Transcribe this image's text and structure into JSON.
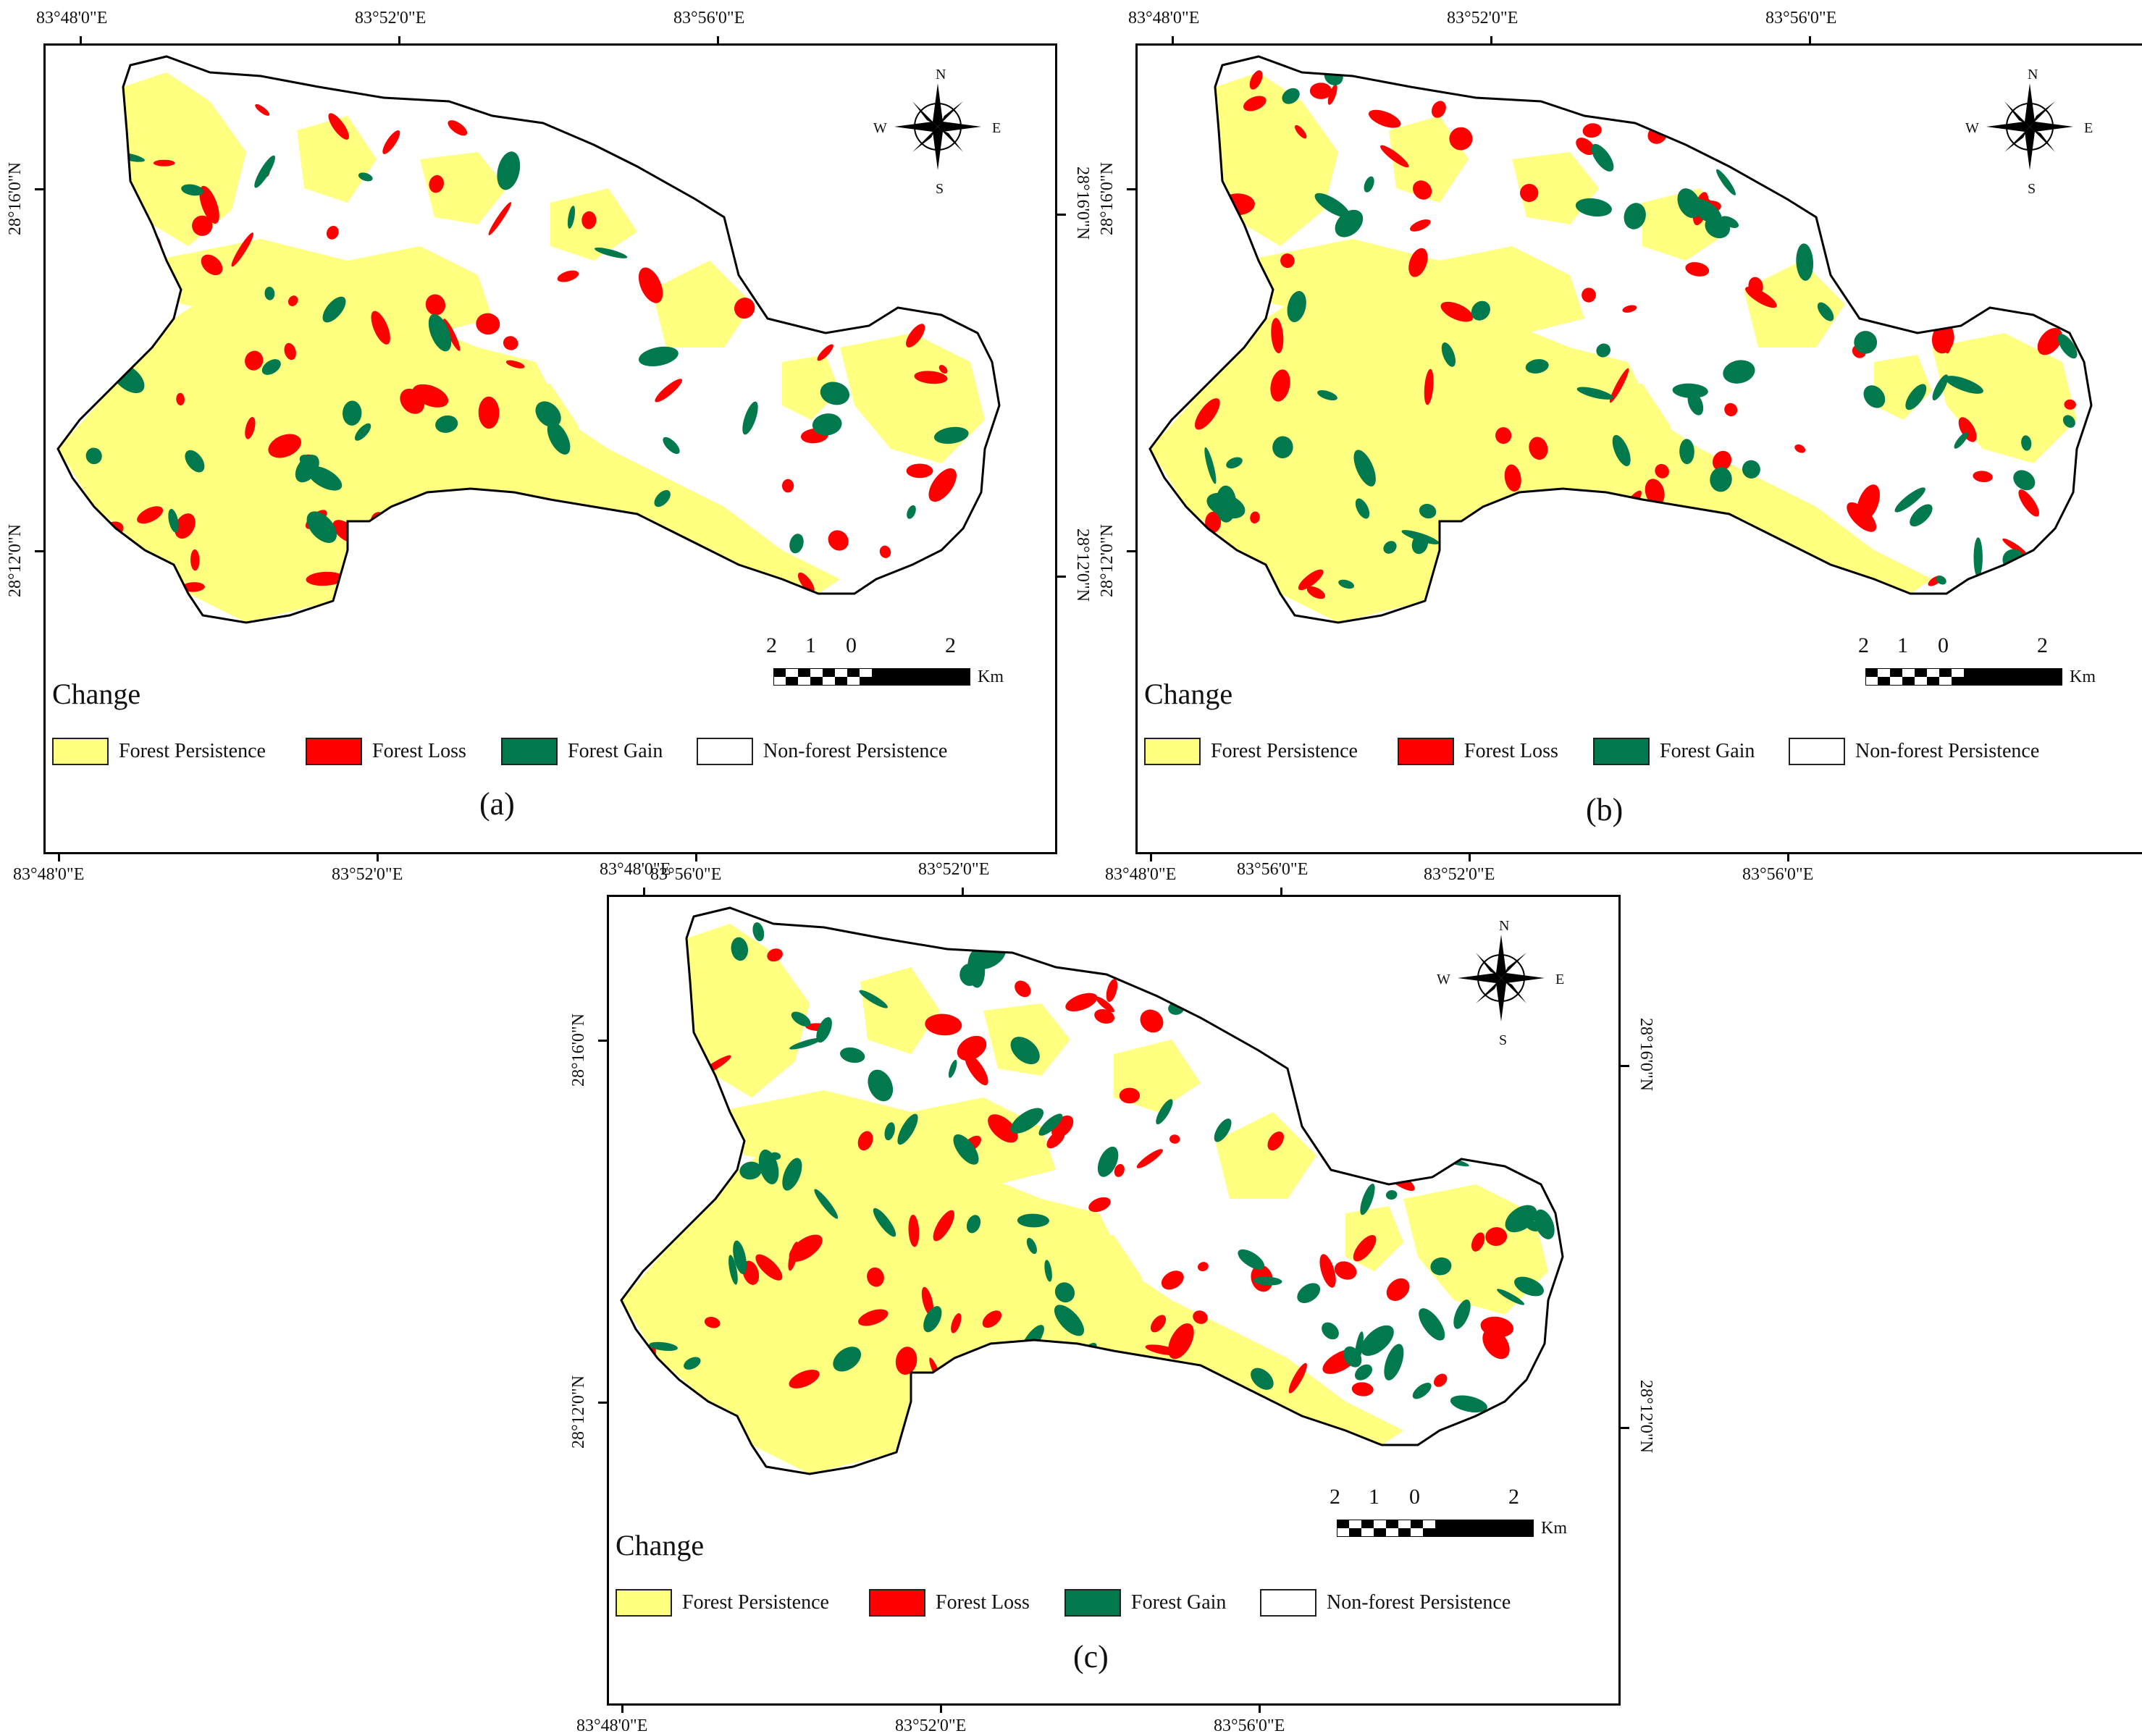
{
  "panels": [
    {
      "caption": "(a)"
    },
    {
      "caption": "(b)"
    },
    {
      "caption": "(c)"
    }
  ],
  "top_ticks": [
    "83°48'0\"E",
    "83°52'0\"E",
    "83°56'0\"E"
  ],
  "bottom_ticks": [
    "83°48'0\"E",
    "83°52'0\"E",
    "83°56'0\"E"
  ],
  "left_ticks": [
    "28°16'0\"N",
    "28°12'0\"N"
  ],
  "right_ticks": [
    "28°16'0\"N",
    "28°12'0\"N"
  ],
  "legend": {
    "title": "Change",
    "items": [
      {
        "label": "Forest Persistence",
        "color": "#ffff80"
      },
      {
        "label": "Forest Loss",
        "color": "#ff0000"
      },
      {
        "label": "Forest Gain",
        "color": "#007a4d"
      },
      {
        "label": "Non-forest Persistence",
        "color": "#ffffff"
      }
    ]
  },
  "scale_bar": {
    "labels": [
      "2",
      "1",
      "0",
      "2"
    ],
    "unit": "Km"
  },
  "compass": {
    "n": "N",
    "s": "S",
    "e": "E",
    "w": "W"
  }
}
